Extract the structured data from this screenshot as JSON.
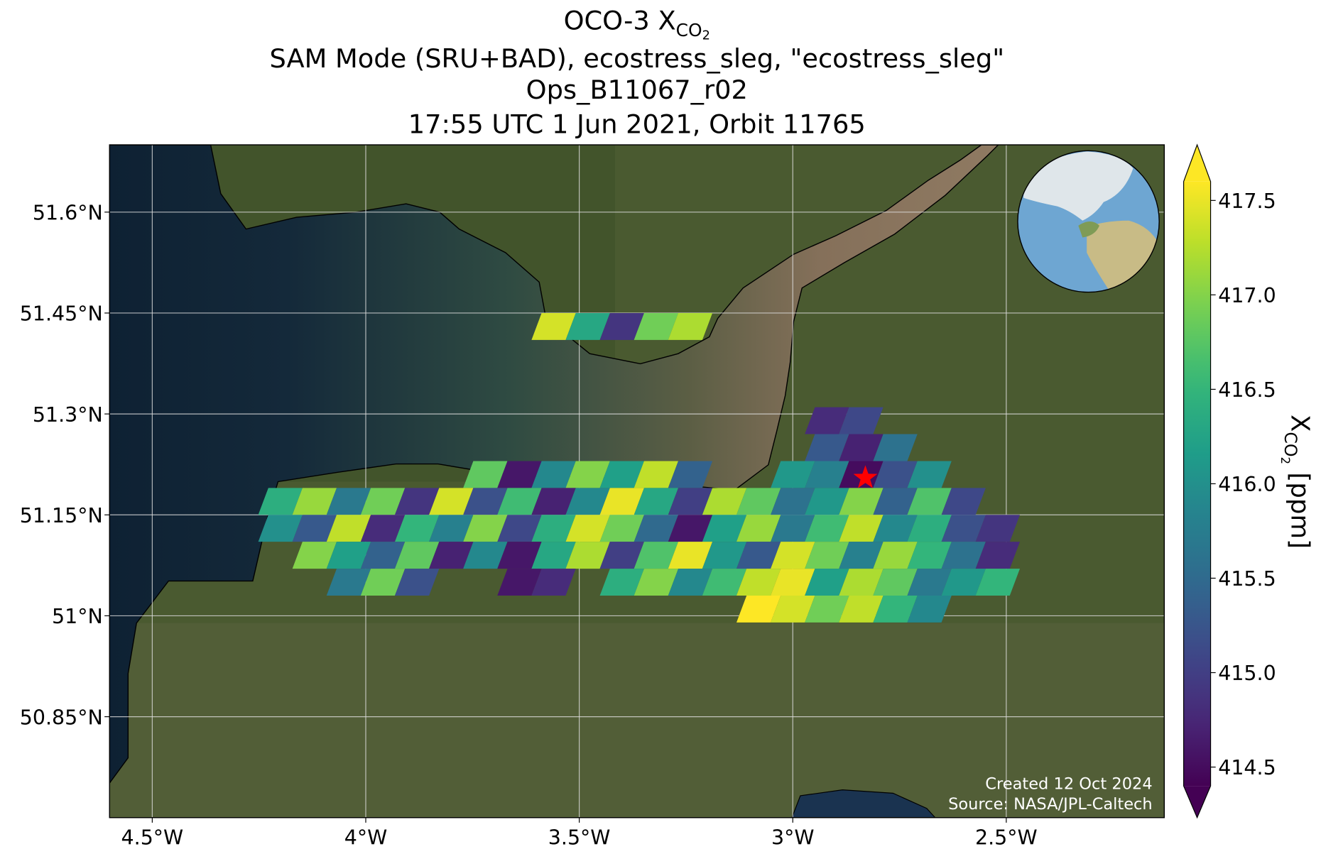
{
  "chart_data": {
    "type": "heatmap",
    "title": {
      "prefix": "OCO-3 X",
      "sub": "CO",
      "subsub": "2"
    },
    "subtitles": [
      "SAM Mode (SRU+BAD), ecostress_sleg, \"ecostress_sleg\"",
      "Ops_B11067_r02",
      "17:55 UTC 1 Jun 2021, Orbit 11765"
    ],
    "xlim": [
      -4.6,
      -2.13
    ],
    "ylim": [
      50.7,
      51.7
    ],
    "xticks": [
      {
        "value": -4.5,
        "label": "4.5°W"
      },
      {
        "value": -4,
        "label": "4°W"
      },
      {
        "value": -3.5,
        "label": "3.5°W"
      },
      {
        "value": -3,
        "label": "3°W"
      },
      {
        "value": -2.5,
        "label": "2.5°W"
      }
    ],
    "yticks": [
      {
        "value": 51.6,
        "label": "51.6°N"
      },
      {
        "value": 51.45,
        "label": "51.45°N"
      },
      {
        "value": 51.3,
        "label": "51.3°N"
      },
      {
        "value": 51.15,
        "label": "51.15°N"
      },
      {
        "value": 51,
        "label": "51°N"
      },
      {
        "value": 50.85,
        "label": "50.85°N"
      }
    ],
    "grid": true,
    "x": [
      -4.2,
      -4.12,
      -4.04,
      -3.96,
      -3.88,
      -3.8,
      -3.72,
      -3.64,
      -3.56,
      -3.48,
      -3.4,
      -3.32,
      -3.24,
      -3.16,
      -3.08,
      -3.0,
      -2.92,
      -2.84,
      -2.76,
      -2.68,
      -2.6,
      -2.52
    ],
    "y": [
      51.43,
      51.29,
      51.25,
      51.21,
      51.17,
      51.13,
      51.09,
      51.05,
      51.01
    ],
    "values": [
      [
        null,
        null,
        null,
        null,
        null,
        null,
        null,
        null,
        417.4,
        416.3,
        414.9,
        416.9,
        417.2,
        null,
        null,
        null,
        null,
        null,
        null,
        null,
        null,
        null
      ],
      [
        null,
        null,
        null,
        null,
        null,
        null,
        null,
        null,
        null,
        null,
        null,
        null,
        null,
        null,
        null,
        null,
        414.8,
        415.1,
        null,
        null,
        null,
        null
      ],
      [
        null,
        null,
        null,
        null,
        null,
        null,
        null,
        null,
        null,
        null,
        null,
        null,
        null,
        null,
        null,
        null,
        415.3,
        414.7,
        415.6,
        null,
        null,
        null
      ],
      [
        null,
        null,
        null,
        null,
        null,
        null,
        416.8,
        414.6,
        415.9,
        417.0,
        416.2,
        417.3,
        415.4,
        null,
        null,
        416.1,
        415.8,
        414.5,
        415.2,
        416.0,
        null,
        null
      ],
      [
        416.4,
        417.1,
        415.7,
        416.9,
        414.9,
        417.4,
        415.2,
        416.6,
        414.7,
        415.9,
        417.5,
        416.3,
        415.0,
        417.2,
        416.8,
        415.6,
        416.1,
        417.0,
        415.4,
        416.7,
        415.1,
        null
      ],
      [
        416.0,
        415.3,
        417.3,
        414.8,
        416.5,
        415.8,
        417.0,
        415.1,
        416.4,
        417.4,
        416.9,
        415.5,
        414.6,
        416.2,
        417.1,
        415.7,
        416.6,
        417.3,
        415.9,
        416.4,
        415.2,
        414.9
      ],
      [
        null,
        417.0,
        416.2,
        415.4,
        416.8,
        414.7,
        415.9,
        414.6,
        416.3,
        417.2,
        415.0,
        416.7,
        417.5,
        416.1,
        415.3,
        417.4,
        416.9,
        415.8,
        417.1,
        416.5,
        415.6,
        414.8
      ],
      [
        null,
        null,
        415.7,
        416.9,
        415.2,
        null,
        null,
        414.6,
        414.8,
        null,
        416.4,
        417.0,
        415.9,
        416.6,
        417.3,
        417.5,
        416.2,
        417.2,
        416.8,
        415.7,
        416.1,
        416.5
      ],
      [
        null,
        null,
        null,
        null,
        null,
        null,
        null,
        null,
        null,
        null,
        null,
        null,
        null,
        null,
        417.6,
        417.4,
        416.9,
        417.3,
        416.5,
        415.9,
        null,
        null
      ]
    ],
    "cell_size": [
      0.08,
      0.04
    ],
    "colormap": "viridis",
    "clim": [
      414.4,
      417.6
    ],
    "colorbar_ticks": [
      414.5,
      {
        "value": 415,
        "label": "415.0"
      },
      415.5,
      {
        "value": 416,
        "label": "416.0"
      },
      416.5,
      {
        "value": 417,
        "label": "417.0"
      },
      417.5
    ],
    "colorbar_label": {
      "prefix": "X",
      "sub": "CO",
      "subsub": "2",
      "suffix": " [ppm]"
    },
    "target": {
      "lon": -2.83,
      "lat": 51.205
    },
    "credits": [
      "Created 12 Oct 2024",
      "Source: NASA/JPL-Caltech"
    ]
  }
}
